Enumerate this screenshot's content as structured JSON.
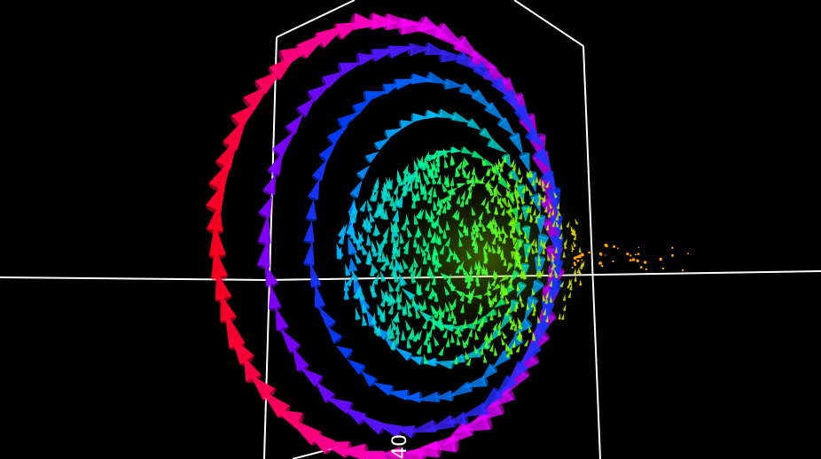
{
  "scene": {
    "description_type": "3d-vector-field-render",
    "background": "#000000",
    "axis_color": "#ffffff",
    "axis_labels": [
      "40"
    ],
    "colormap": [
      "#ff0000",
      "#ff00ff",
      "#8000ff",
      "#0040ff",
      "#00c0ff",
      "#00ff80",
      "#80ff00",
      "#ffc000"
    ],
    "glyph_icon": "cone-arrow-icon"
  }
}
